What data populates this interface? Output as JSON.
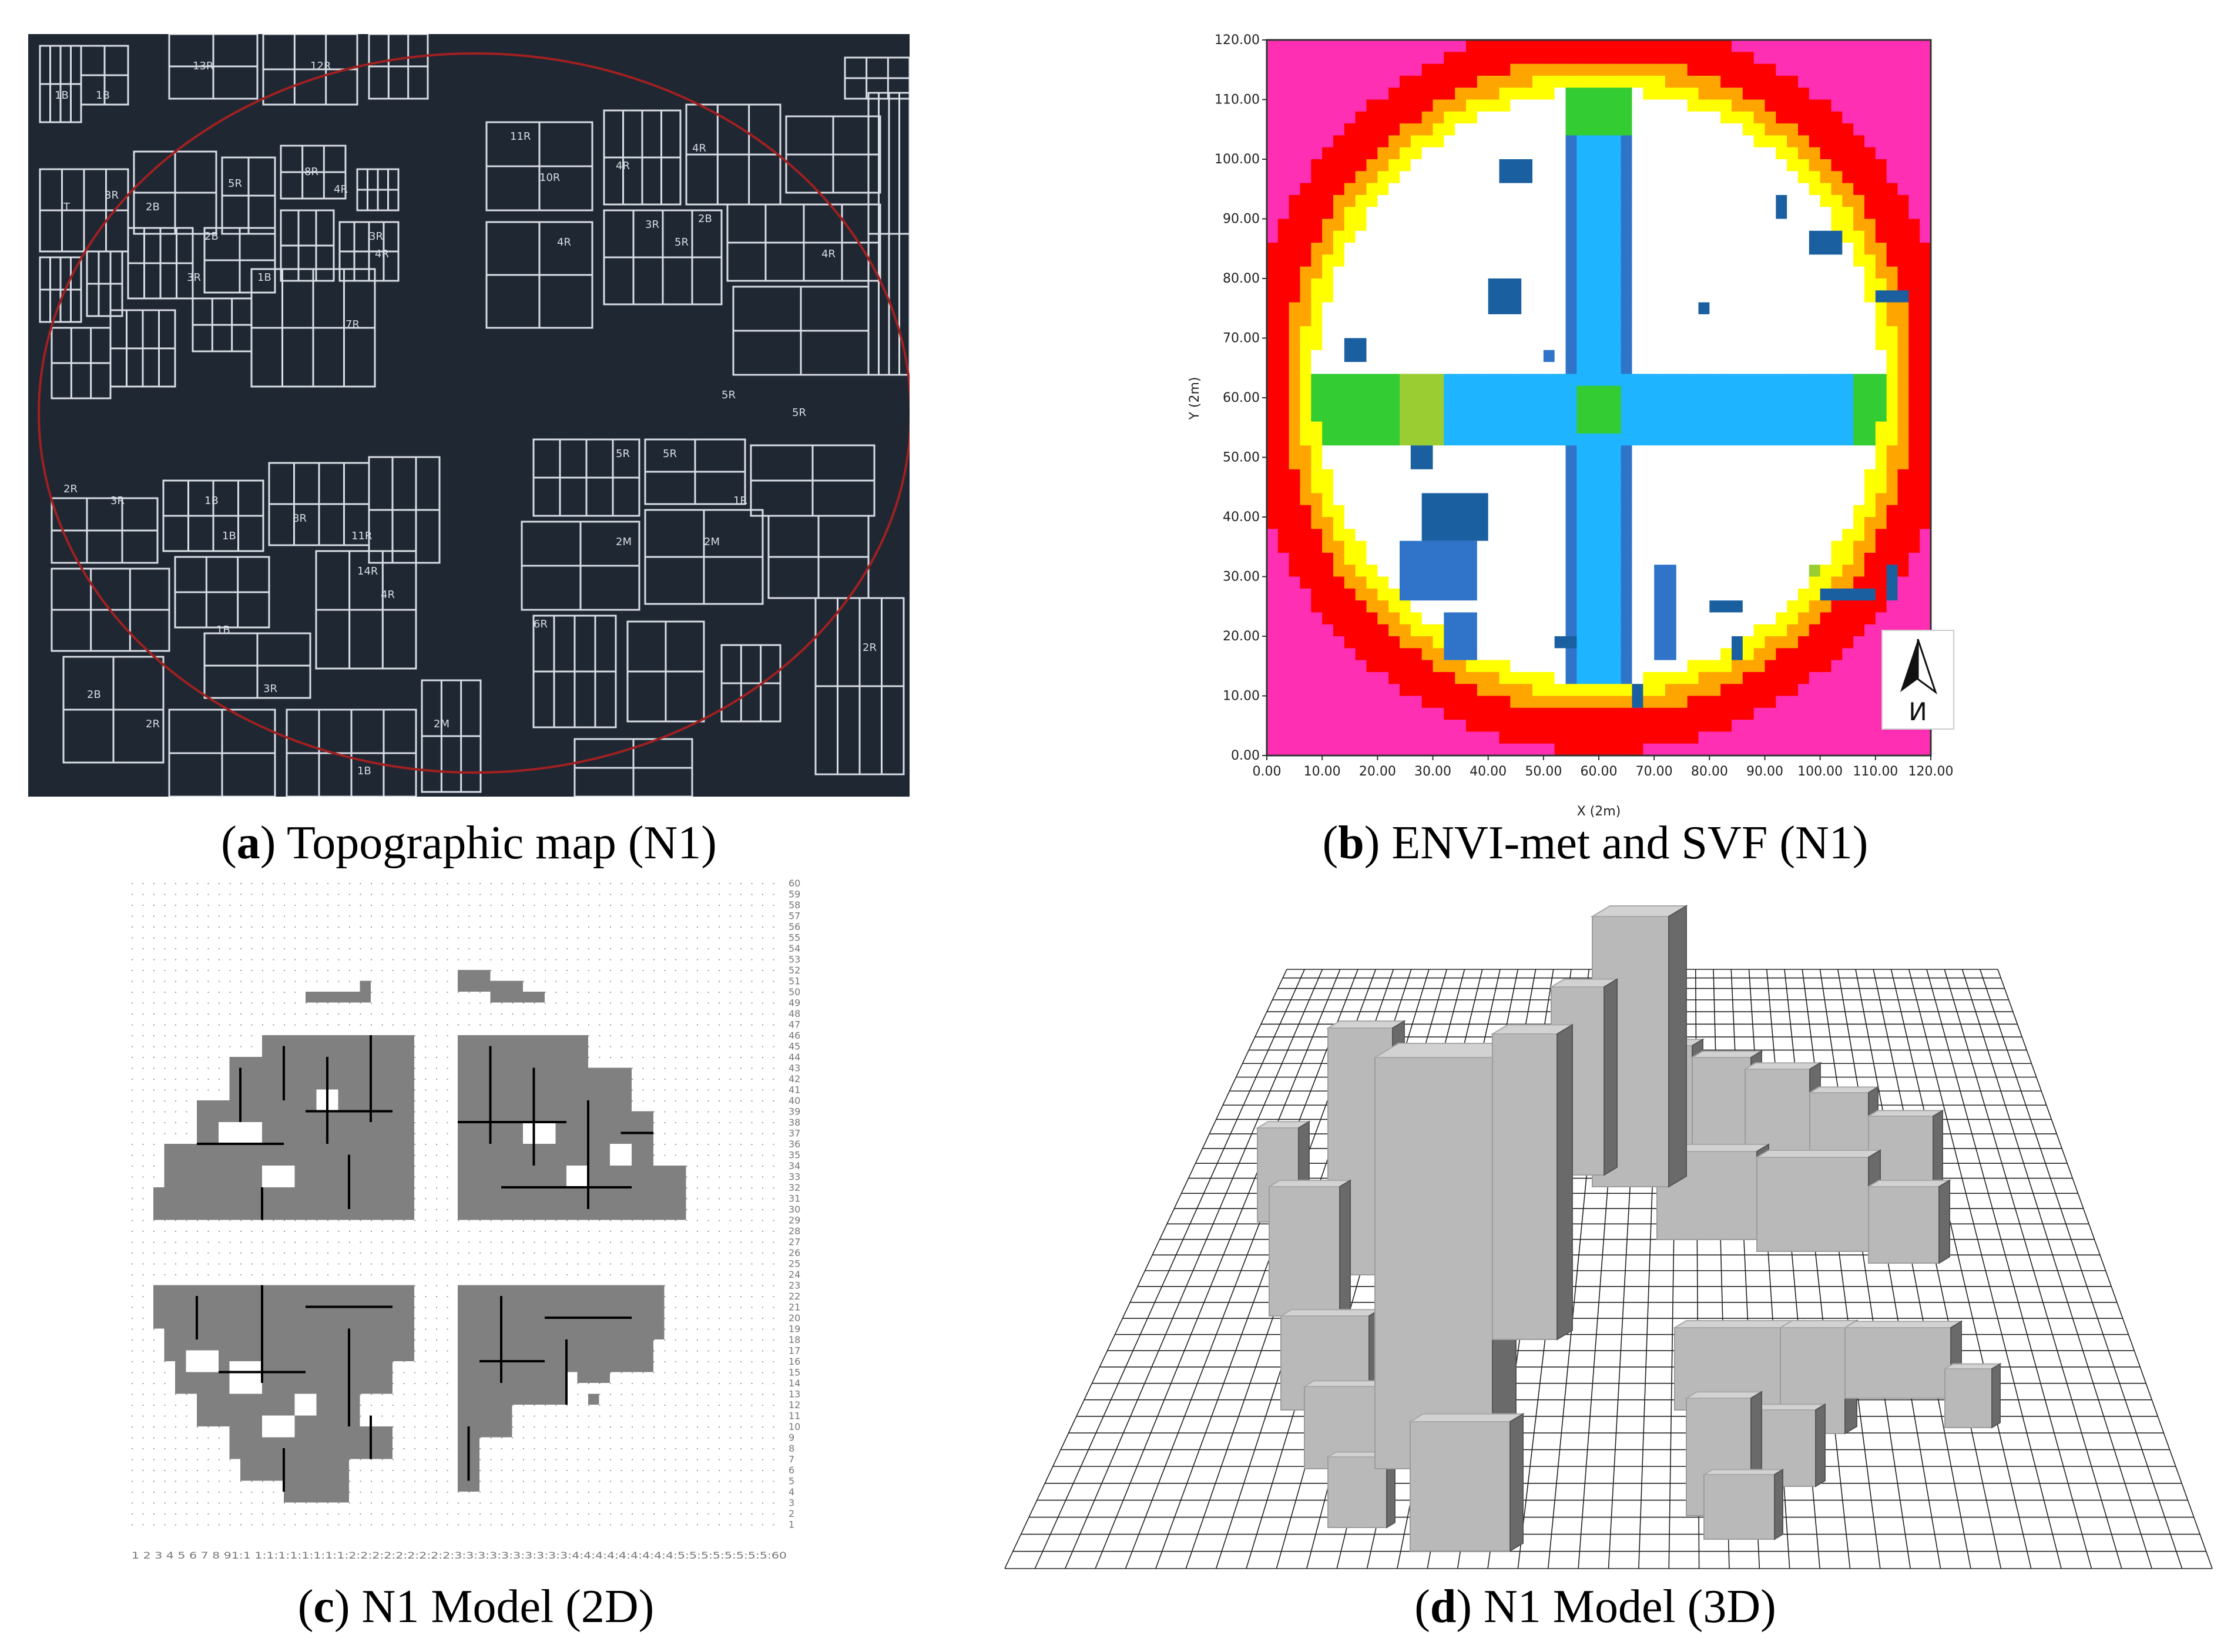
{
  "panels": {
    "a": {
      "letter": "a",
      "caption": "Topographic map (N1)",
      "map_labels": [
        {
          "t": "1B"
        },
        {
          "t": "1B"
        },
        {
          "t": "13R"
        },
        {
          "t": "12R"
        },
        {
          "t": "T"
        },
        {
          "t": "3R"
        },
        {
          "t": "2B"
        },
        {
          "t": "5R"
        },
        {
          "t": "8R"
        },
        {
          "t": "4R"
        },
        {
          "t": "2B"
        },
        {
          "t": "3R"
        },
        {
          "t": "1B"
        },
        {
          "t": "3R"
        },
        {
          "t": "4R"
        },
        {
          "t": "7R"
        },
        {
          "t": "11R"
        },
        {
          "t": "10R"
        },
        {
          "t": "4R"
        },
        {
          "t": "4R"
        },
        {
          "t": "2B"
        },
        {
          "t": "3R"
        },
        {
          "t": "4R"
        },
        {
          "t": "5R"
        },
        {
          "t": "5R"
        },
        {
          "t": "5R"
        },
        {
          "t": "4R"
        },
        {
          "t": "2R"
        },
        {
          "t": "3R"
        },
        {
          "t": "1B"
        },
        {
          "t": "1B"
        },
        {
          "t": "8R"
        },
        {
          "t": "11R"
        },
        {
          "t": "14R"
        },
        {
          "t": "4R"
        },
        {
          "t": "5R"
        },
        {
          "t": "5R"
        },
        {
          "t": "1R"
        },
        {
          "t": "2M"
        },
        {
          "t": "2M"
        },
        {
          "t": "6R"
        },
        {
          "t": "2R"
        },
        {
          "t": "1B"
        },
        {
          "t": "3R"
        },
        {
          "t": "2B"
        },
        {
          "t": "2R"
        },
        {
          "t": "1B"
        },
        {
          "t": "2M"
        }
      ]
    },
    "b": {
      "letter": "b",
      "caption": "ENVI-met and SVF (N1)",
      "xlabel": "X (2m)",
      "ylabel": "Y (2m)",
      "x_ticks": [
        "0.00",
        "10.00",
        "20.00",
        "30.00",
        "40.00",
        "50.00",
        "60.00",
        "70.00",
        "80.00",
        "90.00",
        "100.00",
        "110.00",
        "120.00"
      ],
      "y_ticks": [
        "0.00",
        "10.00",
        "20.00",
        "30.00",
        "40.00",
        "50.00",
        "60.00",
        "70.00",
        "80.00",
        "90.00",
        "100.00",
        "110.00",
        "120.00"
      ],
      "north_label": "N",
      "colors": {
        "outer": "#ff2fb4",
        "ring_red": "#ff0000",
        "ring_orange": "#ffa500",
        "ring_yellow": "#ffff00",
        "lime": "#9acd32",
        "green": "#33cc33",
        "cyan": "#1eb4ff",
        "blue": "#2f74c8",
        "dark_blue": "#1a5fa0",
        "white": "#ffffff"
      }
    },
    "c": {
      "letter": "c",
      "caption": "N1 Model (2D)",
      "y_numbers": [
        "60",
        "59",
        "58",
        "57",
        "56",
        "55",
        "54",
        "53",
        "52",
        "51",
        "50",
        "49",
        "48",
        "47",
        "46",
        "45",
        "44",
        "43",
        "42",
        "41",
        "40",
        "39",
        "38",
        "37",
        "36",
        "35",
        "34",
        "33",
        "32",
        "31",
        "30",
        "29",
        "28",
        "27",
        "26",
        "25",
        "24",
        "23",
        "22",
        "21",
        "20",
        "19",
        "18",
        "17",
        "16",
        "15",
        "14",
        "13",
        "12",
        "11",
        "10",
        "9",
        "8",
        "7",
        "6",
        "5",
        "4",
        "3",
        "2",
        "1"
      ],
      "x_numbers": "1 2 3 4 5 6 7 8 91:1 1:1:1:1:1:1:1:1:2:2:2:2:2:2:2:2:2:3:3:3:3:3:3:3:3:3:3:4:4:4:4:4:4:4:4:4:5:5:5:5:5:5:5:5:60"
    },
    "d": {
      "letter": "d",
      "caption": "N1 Model (3D)"
    }
  }
}
